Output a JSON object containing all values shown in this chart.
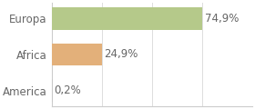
{
  "categories": [
    "America",
    "Africa",
    "Europa"
  ],
  "values": [
    0.2,
    24.9,
    74.9
  ],
  "labels": [
    "0,2%",
    "24,9%",
    "74,9%"
  ],
  "bar_colors": [
    "#c8c8c8",
    "#e3b07a",
    "#b5c98a"
  ],
  "background_color": "#ffffff",
  "xlim": [
    0,
    100
  ],
  "label_fontsize": 8.5,
  "tick_fontsize": 8.5,
  "bar_height": 0.62,
  "grid_color": "#dddddd",
  "spine_color": "#cccccc",
  "text_color": "#666666"
}
